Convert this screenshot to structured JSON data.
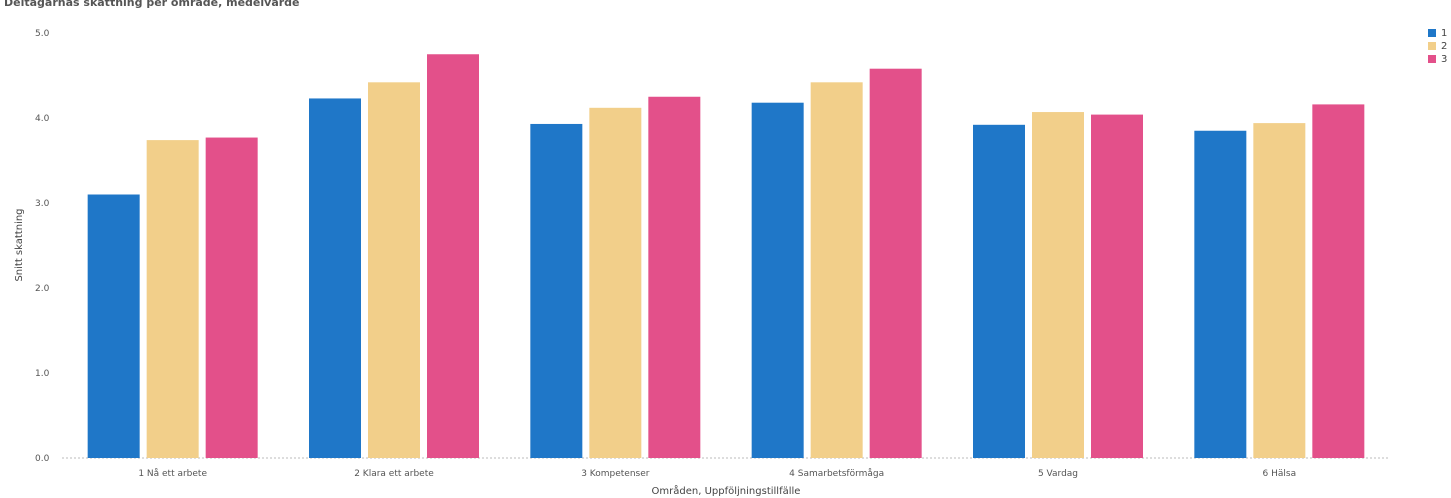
{
  "chart_data": {
    "type": "bar",
    "title": "Deltagarnas skattning per område, medelvärde",
    "xlabel": "Områden, Uppföljningstillfälle",
    "ylabel": "Snitt skattning",
    "ylim": [
      0,
      5
    ],
    "yticks": [
      "0.0",
      "1.0",
      "2.0",
      "3.0",
      "4.0",
      "5.0"
    ],
    "ytick_values": [
      0,
      1,
      2,
      3,
      4,
      5
    ],
    "categories": [
      "1 Nå ett arbete",
      "2 Klara ett arbete",
      "3 Kompetenser",
      "4 Samarbetsförmåga",
      "5 Vardag",
      "6 Hälsa"
    ],
    "series": [
      {
        "name": "1",
        "color": "#1f77c8",
        "values": [
          3.1,
          4.23,
          3.93,
          4.18,
          3.92,
          3.85
        ]
      },
      {
        "name": "2",
        "color": "#f2cf8a",
        "values": [
          3.74,
          4.42,
          4.12,
          4.42,
          4.07,
          3.94
        ]
      },
      {
        "name": "3",
        "color": "#e3508a",
        "values": [
          3.77,
          4.75,
          4.25,
          4.58,
          4.04,
          4.16
        ]
      }
    ],
    "legend": "top-right",
    "grid": false
  }
}
